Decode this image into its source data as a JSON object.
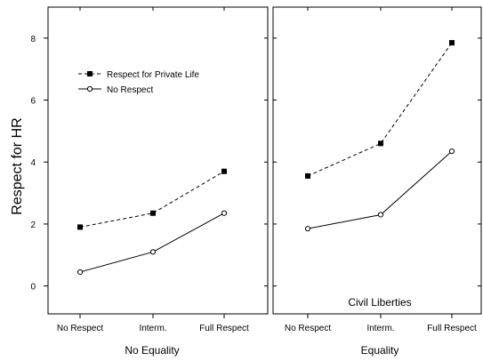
{
  "chart_data": {
    "type": "line",
    "ylabel": "Respect for HR",
    "ylim": [
      -0.9,
      9.0
    ],
    "yticks": [
      0,
      2,
      4,
      6,
      8
    ],
    "categories": [
      "No Respect",
      "Interm.",
      "Full Respect"
    ],
    "legend": {
      "placement": "upper-left of left panel",
      "entries": [
        "Respect for Private Life",
        "No Respect"
      ]
    },
    "panels": [
      {
        "xlabel": "No Equality",
        "annotation": "",
        "series": [
          {
            "name": "Respect for Private Life",
            "style": "dashed",
            "marker": "filled-square",
            "values": [
              1.9,
              2.35,
              3.7
            ]
          },
          {
            "name": "No Respect",
            "style": "solid",
            "marker": "open-circle",
            "values": [
              0.45,
              1.1,
              2.35
            ]
          }
        ]
      },
      {
        "xlabel": "Equality",
        "annotation": "Civil Liberties",
        "series": [
          {
            "name": "Respect for Private Life",
            "style": "dashed",
            "marker": "filled-square",
            "values": [
              3.55,
              4.6,
              7.85
            ]
          },
          {
            "name": "No Respect",
            "style": "solid",
            "marker": "open-circle",
            "values": [
              1.85,
              2.3,
              4.35
            ]
          }
        ]
      }
    ]
  }
}
